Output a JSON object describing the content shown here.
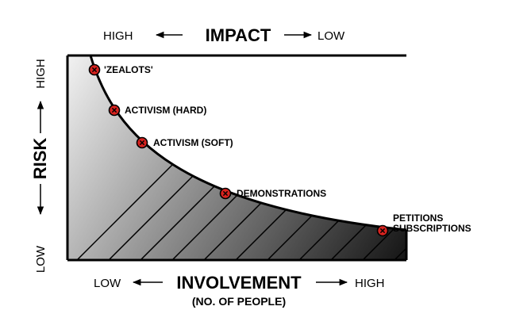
{
  "top_axis": {
    "title": "IMPACT",
    "left_label": "HIGH",
    "right_label": "LOW"
  },
  "left_axis": {
    "title": "RISK",
    "top_label": "HIGH",
    "bottom_label": "LOW"
  },
  "bottom_axis": {
    "title": "INVOLVEMENT",
    "subtitle": "(NO. OF PEOPLE)",
    "left_label": "LOW",
    "right_label": "HIGH"
  },
  "points": [
    {
      "lines": [
        "'ZEALOTS'"
      ]
    },
    {
      "lines": [
        "ACTIVISM (HARD)"
      ]
    },
    {
      "lines": [
        "ACTIVISM (SOFT)"
      ]
    },
    {
      "lines": [
        "DEMONSTRATIONS"
      ]
    },
    {
      "lines": [
        "PETITIONS",
        "SUBSCRIPTIONS"
      ]
    }
  ],
  "colors": {
    "marker_fill": "#d8231f",
    "outline": "#000000",
    "gradient_light": "#f2f2f2",
    "gradient_dark": "#141414"
  }
}
